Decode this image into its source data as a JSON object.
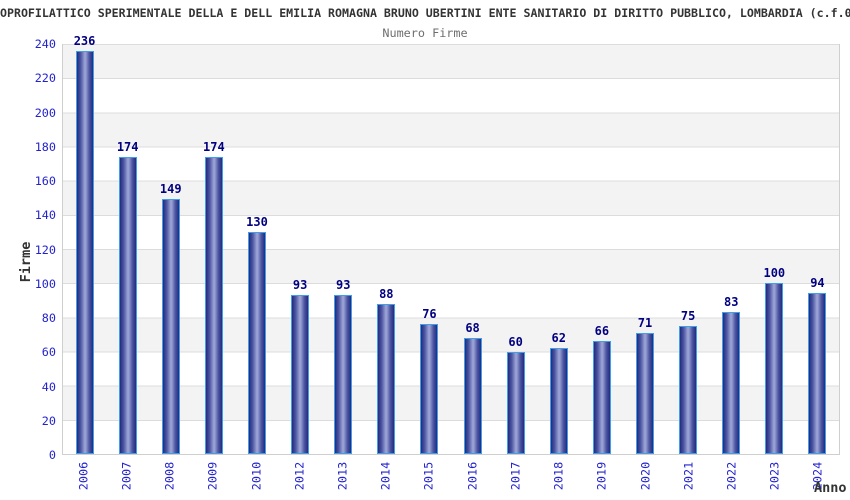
{
  "chart_data": {
    "type": "bar",
    "title": "OPROFILATTICO SPERIMENTALE DELLA E DELL EMILIA ROMAGNA BRUNO UBERTINI ENTE SANITARIO DI DIRITTO PUBBLICO, LOMBARDIA (c.f.0",
    "subtitle": "Numero Firme",
    "xlabel": "Anno",
    "ylabel": "Firme",
    "categories": [
      "2006",
      "2007",
      "2008",
      "2009",
      "2010",
      "2012",
      "2013",
      "2014",
      "2015",
      "2016",
      "2017",
      "2018",
      "2019",
      "2020",
      "2021",
      "2022",
      "2023",
      "2024"
    ],
    "values": [
      236,
      174,
      149,
      174,
      130,
      93,
      93,
      88,
      76,
      68,
      60,
      62,
      66,
      71,
      75,
      83,
      100,
      94
    ],
    "ylim": [
      0,
      240
    ],
    "ytick_step": 20,
    "legend": "none",
    "grid": "horizontal gridlines every 20 with alternating gray/white bands"
  },
  "colors": {
    "title_color": "#333333",
    "subtitle_color": "#6e6e6e",
    "axis_label_blue": "#2323cd",
    "value_navy": "#000080",
    "bar_border": "#3fa0e8",
    "bar_dark": "#242b80",
    "bar_mid": "#4a53a0",
    "bar_light": "#99a1d4",
    "band_gray": "#f3f3f3",
    "grid_line": "#dcdcdc",
    "plot_border": "#cfcfcf"
  }
}
